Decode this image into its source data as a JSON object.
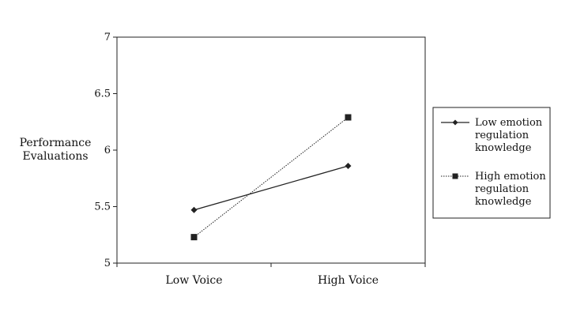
{
  "chart_data": {
    "type": "line",
    "title": "",
    "xlabel": "",
    "ylabel": [
      "Performance",
      "Evaluations"
    ],
    "categories": [
      "Low Voice",
      "High Voice"
    ],
    "ylim": [
      5,
      7
    ],
    "yticks": [
      "5",
      "5.5",
      "6",
      "6.5",
      "7"
    ],
    "yticks_values": [
      5,
      5.5,
      6,
      6.5,
      7
    ],
    "grid": false,
    "legend_position": "right",
    "series": [
      {
        "name": [
          "Low emotion",
          "regulation",
          "knowledge"
        ],
        "values": [
          5.47,
          5.86
        ],
        "marker": "diamond",
        "line_style": "solid",
        "color": "#222222"
      },
      {
        "name": [
          "High emotion",
          "regulation",
          "knowledge"
        ],
        "values": [
          5.23,
          6.29
        ],
        "marker": "square",
        "line_style": "dotted",
        "color": "#222222"
      }
    ]
  }
}
